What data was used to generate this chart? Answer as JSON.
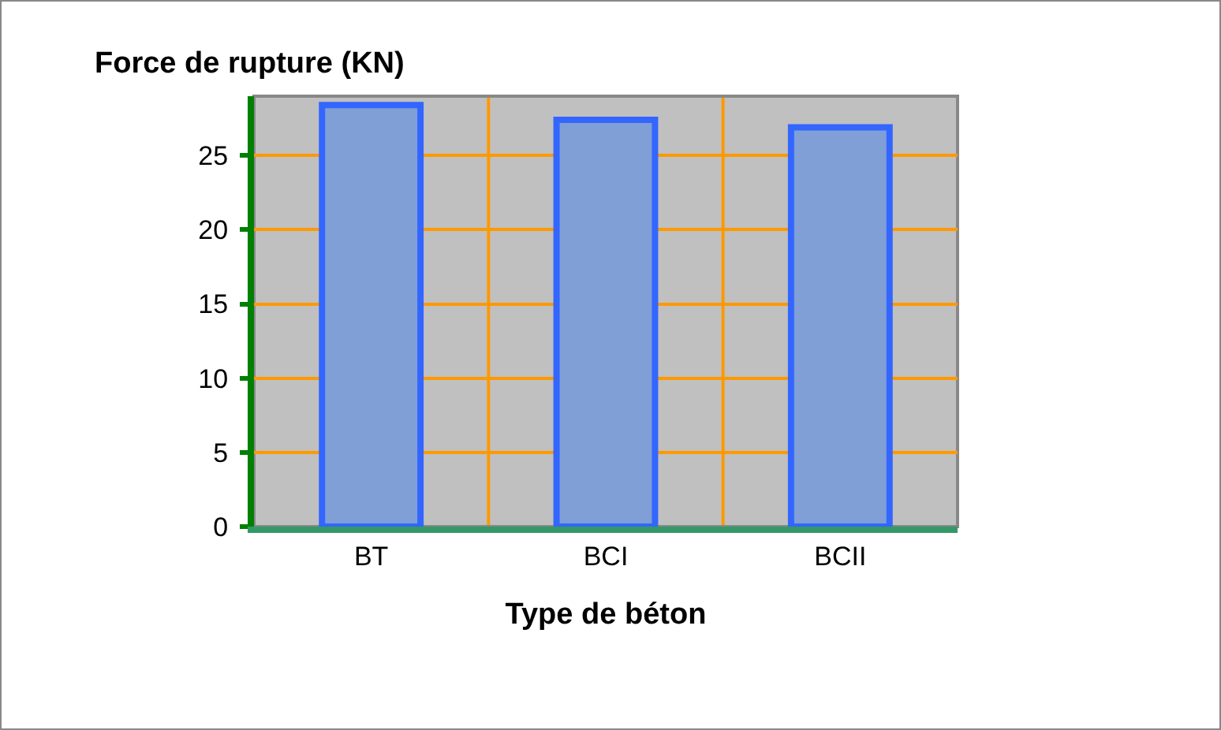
{
  "chart_data": {
    "type": "bar",
    "title": "Force de rupture (KN)",
    "xlabel": "Type de béton",
    "categories": [
      "BT",
      "BCI",
      "BCII"
    ],
    "values": [
      28.4,
      27.4,
      26.9
    ],
    "color": "#7f9fd6",
    "ylim": [
      0,
      29
    ],
    "yticks": [
      0,
      5,
      10,
      15,
      20,
      25
    ],
    "grid": true
  }
}
